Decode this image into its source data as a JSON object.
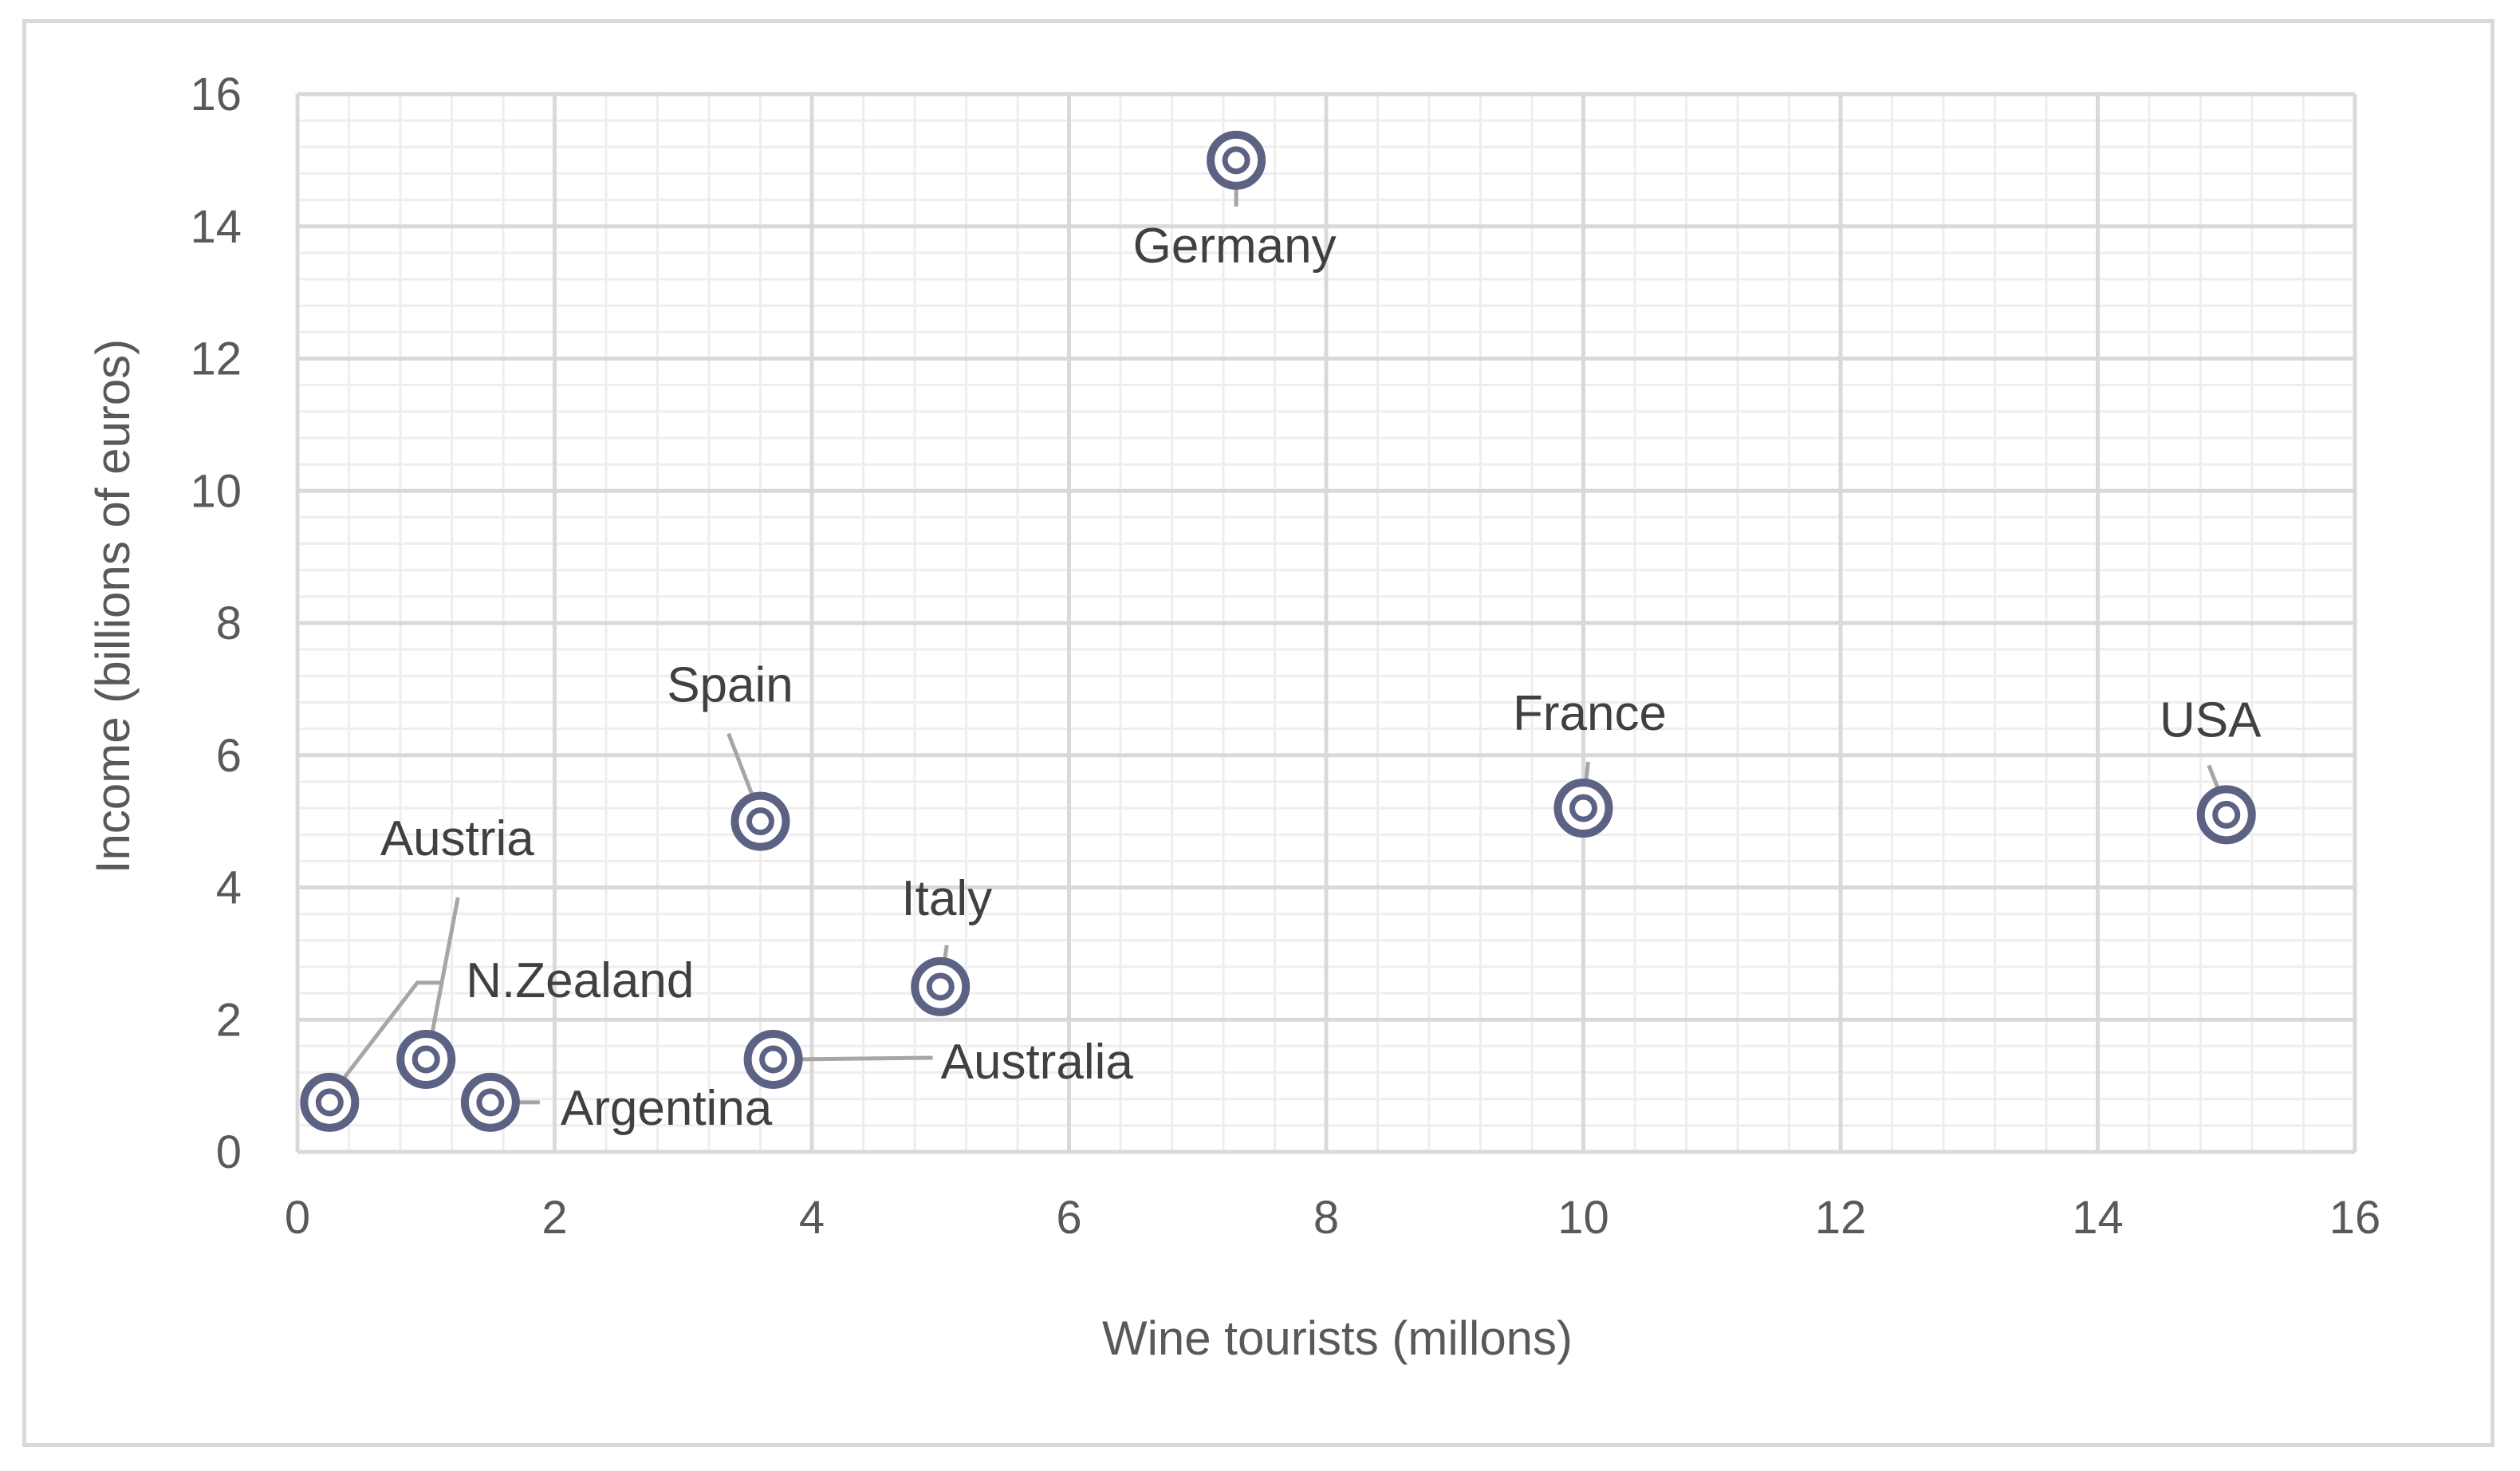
{
  "chart_data": {
    "type": "scatter",
    "title": "",
    "xlabel": "Wine tourists (millons)",
    "ylabel": "Income (billions of euros)",
    "xlim": [
      0,
      16
    ],
    "ylim": [
      0,
      16
    ],
    "x_ticks": [
      "0",
      "2",
      "4",
      "6",
      "8",
      "10",
      "12",
      "14",
      "16"
    ],
    "y_ticks": [
      "0",
      "2",
      "4",
      "6",
      "8",
      "10",
      "12",
      "14",
      "16"
    ],
    "grid": true,
    "legend": "none",
    "marker_color": "#5b6283",
    "grid_major_color": "#d9d9d9",
    "grid_minor_color": "#eeeeee",
    "leader_color": "#a6a6a6",
    "points": [
      {
        "label": "Germany",
        "x": 7.3,
        "y": 15.0
      },
      {
        "label": "Spain",
        "x": 3.6,
        "y": 5.0
      },
      {
        "label": "France",
        "x": 10.0,
        "y": 5.2
      },
      {
        "label": "USA",
        "x": 15.0,
        "y": 5.1
      },
      {
        "label": "Italy",
        "x": 5.0,
        "y": 2.5
      },
      {
        "label": "Australia",
        "x": 3.7,
        "y": 1.4
      },
      {
        "label": "N.Zealand",
        "x": 1.0,
        "y": 1.4
      },
      {
        "label": "Austria",
        "x": 0.25,
        "y": 0.75
      },
      {
        "label": "Argentina",
        "x": 1.5,
        "y": 0.75
      }
    ]
  }
}
